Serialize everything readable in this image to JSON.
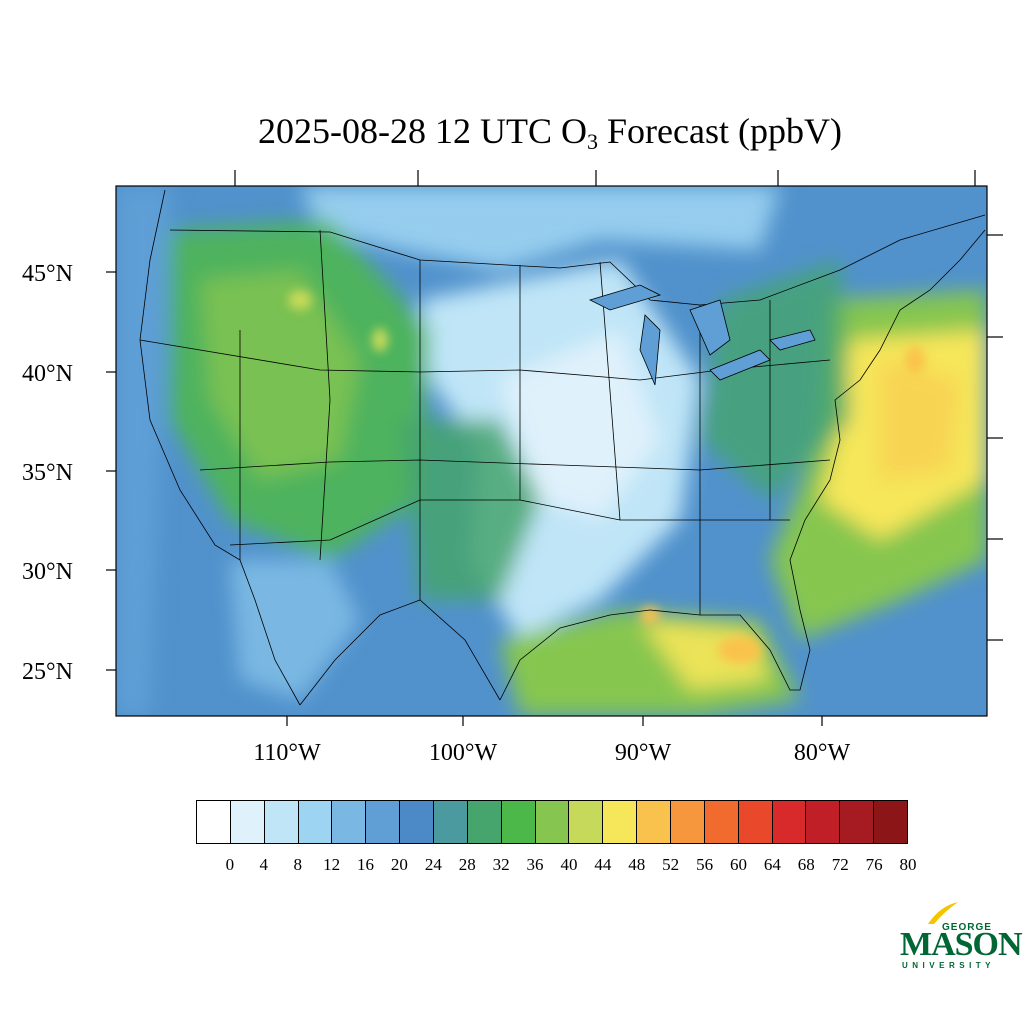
{
  "title": {
    "prefix": "2025-08-28 12 UTC O",
    "subscript": "3",
    "suffix": " Forecast (ppbV)"
  },
  "map": {
    "lat_labels": [
      "45°N",
      "40°N",
      "35°N",
      "30°N",
      "25°N"
    ],
    "lon_labels": [
      "110°W",
      "100°W",
      "90°W",
      "80°W"
    ],
    "projection_region": "Continental United States",
    "base_color": "#5192cc",
    "boundary_color": "#000000"
  },
  "colorbar": {
    "labels": [
      "0",
      "4",
      "8",
      "12",
      "16",
      "20",
      "24",
      "28",
      "32",
      "36",
      "40",
      "44",
      "48",
      "52",
      "56",
      "60",
      "64",
      "68",
      "72",
      "76",
      "80"
    ],
    "colors": [
      "#ffffff",
      "#dff1fb",
      "#bfe5f7",
      "#9dd4f2",
      "#7ab8e3",
      "#5f9fd6",
      "#4b8ac6",
      "#4a9aa0",
      "#45a56d",
      "#4db84a",
      "#86c650",
      "#c6d95a",
      "#f6e65a",
      "#f9c24c",
      "#f6963d",
      "#f26b2e",
      "#e9482a",
      "#d82a2b",
      "#c11f27",
      "#a51b21",
      "#8c1518"
    ]
  },
  "logo": {
    "line1": "GEORGE",
    "line2": "MASON",
    "line3": "UNIVERSITY",
    "color": "#006633",
    "accent": "#f2c500"
  }
}
